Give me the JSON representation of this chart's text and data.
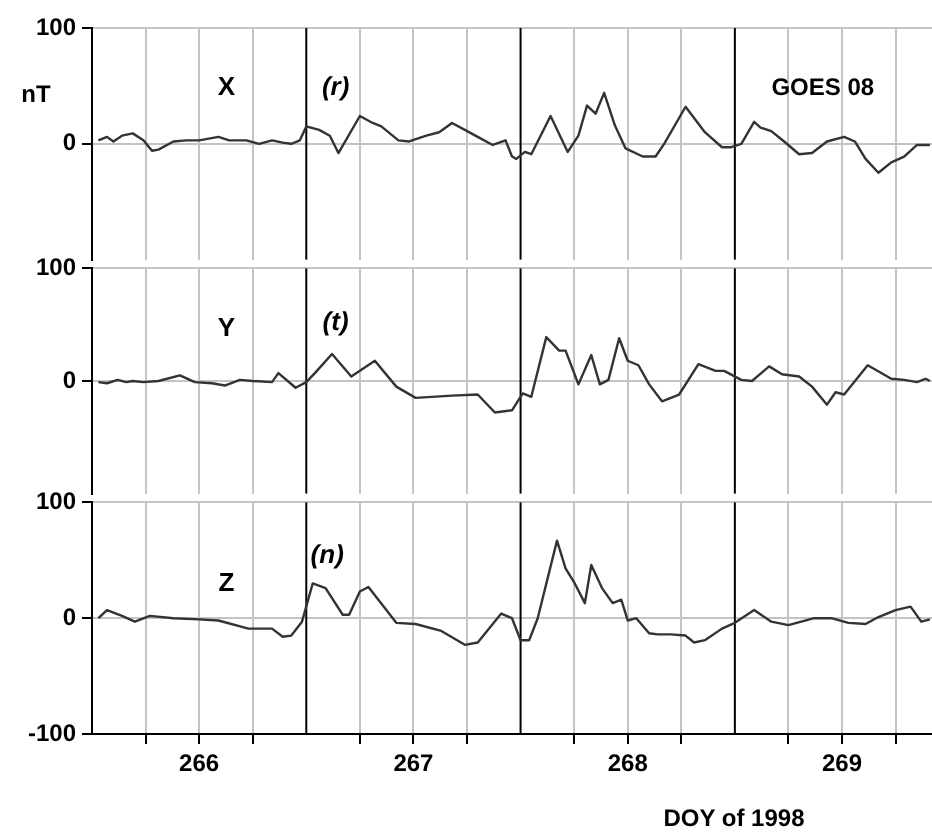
{
  "chart_data": [
    {
      "type": "line",
      "ylabel": "nT",
      "annotations": [
        "(r)",
        "GOES 08"
      ],
      "xlim": [
        266,
        269.92
      ],
      "ylim": [
        -100,
        100
      ],
      "yticks": [
        0,
        100
      ],
      "xticks": [
        {
          "value": 266.25,
          "label": null
        },
        {
          "value": 266.5,
          "label": null
        },
        {
          "value": 266.75,
          "label": null
        },
        {
          "value": 267.25,
          "label": null
        },
        {
          "value": 267.5,
          "label": null
        },
        {
          "value": 267.75,
          "label": null
        },
        {
          "value": 268.25,
          "label": null
        },
        {
          "value": 268.5,
          "label": null
        },
        {
          "value": 268.75,
          "label": null
        },
        {
          "value": 269.25,
          "label": null
        },
        {
          "value": 269.5,
          "label": null
        },
        {
          "value": 269.75,
          "label": null
        }
      ],
      "tick_labels": "y",
      "grid": true,
      "legend": false,
      "marker": "none",
      "line_style": "solid",
      "ref_lines": [
        {
          "axis": "x",
          "value": 267,
          "color": "#000000"
        },
        {
          "axis": "x",
          "value": 268,
          "color": "#000000"
        },
        {
          "axis": "x",
          "value": 269,
          "color": "#000000"
        }
      ],
      "x": [
        266.03,
        266.07,
        266.1,
        266.14,
        266.19,
        266.24,
        266.28,
        266.31,
        266.38,
        266.44,
        266.5,
        266.59,
        266.64,
        266.72,
        266.78,
        266.84,
        266.89,
        266.93,
        266.97,
        267.0,
        267.06,
        267.11,
        267.15,
        267.25,
        267.31,
        267.35,
        267.43,
        267.48,
        267.56,
        267.62,
        267.68,
        267.74,
        267.8,
        267.87,
        267.93,
        267.96,
        267.98,
        268.02,
        268.05,
        268.14,
        268.22,
        268.27,
        268.31,
        268.35,
        268.39,
        268.44,
        268.49,
        268.57,
        268.63,
        268.67,
        268.77,
        268.86,
        268.94,
        268.98,
        269.03,
        269.09,
        269.12,
        269.17,
        269.23,
        269.3,
        269.36,
        269.43,
        269.51,
        269.56,
        269.61,
        269.67,
        269.73,
        269.79,
        269.85,
        269.91
      ],
      "series": [
        {
          "name": "X",
          "color": "#333333",
          "values": [
            3,
            6,
            2,
            7,
            9,
            3,
            -6,
            -5,
            2,
            3,
            3,
            6,
            3,
            3,
            0,
            3,
            1,
            0,
            3,
            15,
            12,
            7,
            -8,
            24,
            18,
            15,
            3,
            2,
            7,
            10,
            18,
            12,
            6,
            -1,
            3,
            -11,
            -13,
            -7,
            -9,
            24,
            -7,
            7,
            33,
            26,
            44,
            16,
            -4,
            -11,
            -11,
            0,
            32,
            10,
            -3,
            -3,
            0,
            19,
            14,
            11,
            2,
            -9,
            -8,
            2,
            6,
            2,
            -13,
            -25,
            -16,
            -11,
            -1,
            -1
          ]
        }
      ]
    },
    {
      "type": "line",
      "annotations": [
        "(t)"
      ],
      "xlim": [
        266,
        269.92
      ],
      "ylim": [
        -100,
        100
      ],
      "yticks": [
        0,
        100
      ],
      "xticks": [
        {
          "value": 266.25,
          "label": null
        },
        {
          "value": 266.5,
          "label": null
        },
        {
          "value": 266.75,
          "label": null
        },
        {
          "value": 267.25,
          "label": null
        },
        {
          "value": 267.5,
          "label": null
        },
        {
          "value": 267.75,
          "label": null
        },
        {
          "value": 268.25,
          "label": null
        },
        {
          "value": 268.5,
          "label": null
        },
        {
          "value": 268.75,
          "label": null
        },
        {
          "value": 269.25,
          "label": null
        },
        {
          "value": 269.5,
          "label": null
        },
        {
          "value": 269.75,
          "label": null
        }
      ],
      "tick_labels": "y",
      "grid": true,
      "legend": false,
      "marker": "none",
      "line_style": "solid",
      "ref_lines": [
        {
          "axis": "x",
          "value": 267,
          "color": "#000000"
        },
        {
          "axis": "x",
          "value": 268,
          "color": "#000000"
        },
        {
          "axis": "x",
          "value": 269,
          "color": "#000000"
        }
      ],
      "x": [
        266.03,
        266.07,
        266.12,
        266.16,
        266.19,
        266.24,
        266.31,
        266.41,
        266.48,
        266.56,
        266.62,
        266.69,
        266.75,
        266.84,
        266.87,
        266.95,
        267.0,
        267.04,
        267.12,
        267.21,
        267.32,
        267.42,
        267.51,
        267.68,
        267.8,
        267.88,
        267.96,
        268.01,
        268.05,
        268.12,
        268.18,
        268.21,
        268.27,
        268.33,
        268.37,
        268.41,
        268.46,
        268.5,
        268.55,
        268.6,
        268.66,
        268.74,
        268.83,
        268.91,
        268.95,
        269.03,
        269.08,
        269.16,
        269.22,
        269.3,
        269.36,
        269.43,
        269.47,
        269.51,
        269.62,
        269.73,
        269.79,
        269.85,
        269.89,
        269.91
      ],
      "series": [
        {
          "name": "Y",
          "color": "#333333",
          "values": [
            -1,
            -2,
            1,
            -1,
            0,
            -1,
            0,
            5,
            -1,
            -2,
            -4,
            1,
            0,
            -1,
            7,
            -6,
            -1,
            7,
            24,
            4,
            18,
            -5,
            -15,
            -13,
            -12,
            -28,
            -26,
            -11,
            -14,
            39,
            27,
            27,
            -3,
            23,
            -3,
            1,
            38,
            18,
            14,
            -3,
            -18,
            -12,
            15,
            9,
            9,
            1,
            0,
            13,
            6,
            4,
            -5,
            -21,
            -10,
            -12,
            14,
            2,
            1,
            -1,
            2,
            0
          ]
        }
      ]
    },
    {
      "type": "line",
      "xlabel": "DOY of 1998",
      "annotations": [
        "(n)"
      ],
      "xlim": [
        266,
        269.92
      ],
      "ylim": [
        -100,
        100
      ],
      "yticks": [
        -100,
        0,
        100
      ],
      "xticks": [
        {
          "value": 266.25,
          "label": null
        },
        {
          "value": 266.5,
          "label": "266"
        },
        {
          "value": 266.75,
          "label": null
        },
        {
          "value": 267.25,
          "label": null
        },
        {
          "value": 267.5,
          "label": "267"
        },
        {
          "value": 267.75,
          "label": null
        },
        {
          "value": 268.25,
          "label": null
        },
        {
          "value": 268.5,
          "label": "268"
        },
        {
          "value": 268.75,
          "label": null
        },
        {
          "value": 269.25,
          "label": null
        },
        {
          "value": 269.5,
          "label": "269"
        },
        {
          "value": 269.75,
          "label": null
        }
      ],
      "grid": true,
      "legend": false,
      "marker": "none",
      "line_style": "solid",
      "ref_lines": [
        {
          "axis": "x",
          "value": 267,
          "color": "#000000"
        },
        {
          "axis": "x",
          "value": 268,
          "color": "#000000"
        },
        {
          "axis": "x",
          "value": 269,
          "color": "#000000"
        }
      ],
      "x": [
        266.03,
        266.07,
        266.14,
        266.2,
        266.27,
        266.38,
        266.5,
        266.59,
        266.73,
        266.84,
        266.89,
        266.93,
        266.98,
        267.03,
        267.09,
        267.17,
        267.2,
        267.25,
        267.29,
        267.42,
        267.51,
        267.63,
        267.74,
        267.8,
        267.91,
        267.96,
        268.0,
        268.04,
        268.08,
        268.17,
        268.21,
        268.25,
        268.3,
        268.33,
        268.38,
        268.43,
        268.47,
        268.5,
        268.54,
        268.6,
        268.64,
        268.7,
        268.77,
        268.81,
        268.86,
        268.94,
        269.0,
        269.09,
        269.17,
        269.25,
        269.37,
        269.45,
        269.53,
        269.61,
        269.67,
        269.75,
        269.82,
        269.87,
        269.91
      ],
      "series": [
        {
          "name": "Z",
          "color": "#333333",
          "values": [
            0,
            7,
            2,
            -3,
            2,
            0,
            -1,
            -2,
            -9,
            -9,
            -16,
            -15,
            -3,
            30,
            26,
            3,
            3,
            23,
            27,
            -4,
            -5,
            -11,
            -23,
            -21,
            4,
            0,
            -19,
            -19,
            0,
            67,
            43,
            31,
            13,
            46,
            26,
            13,
            16,
            -2,
            0,
            -13,
            -14,
            -14,
            -15,
            -21,
            -19,
            -9,
            -4,
            7,
            -3,
            -6,
            0,
            0,
            -4,
            -5,
            1,
            7,
            10,
            -3,
            -1
          ]
        }
      ]
    }
  ]
}
